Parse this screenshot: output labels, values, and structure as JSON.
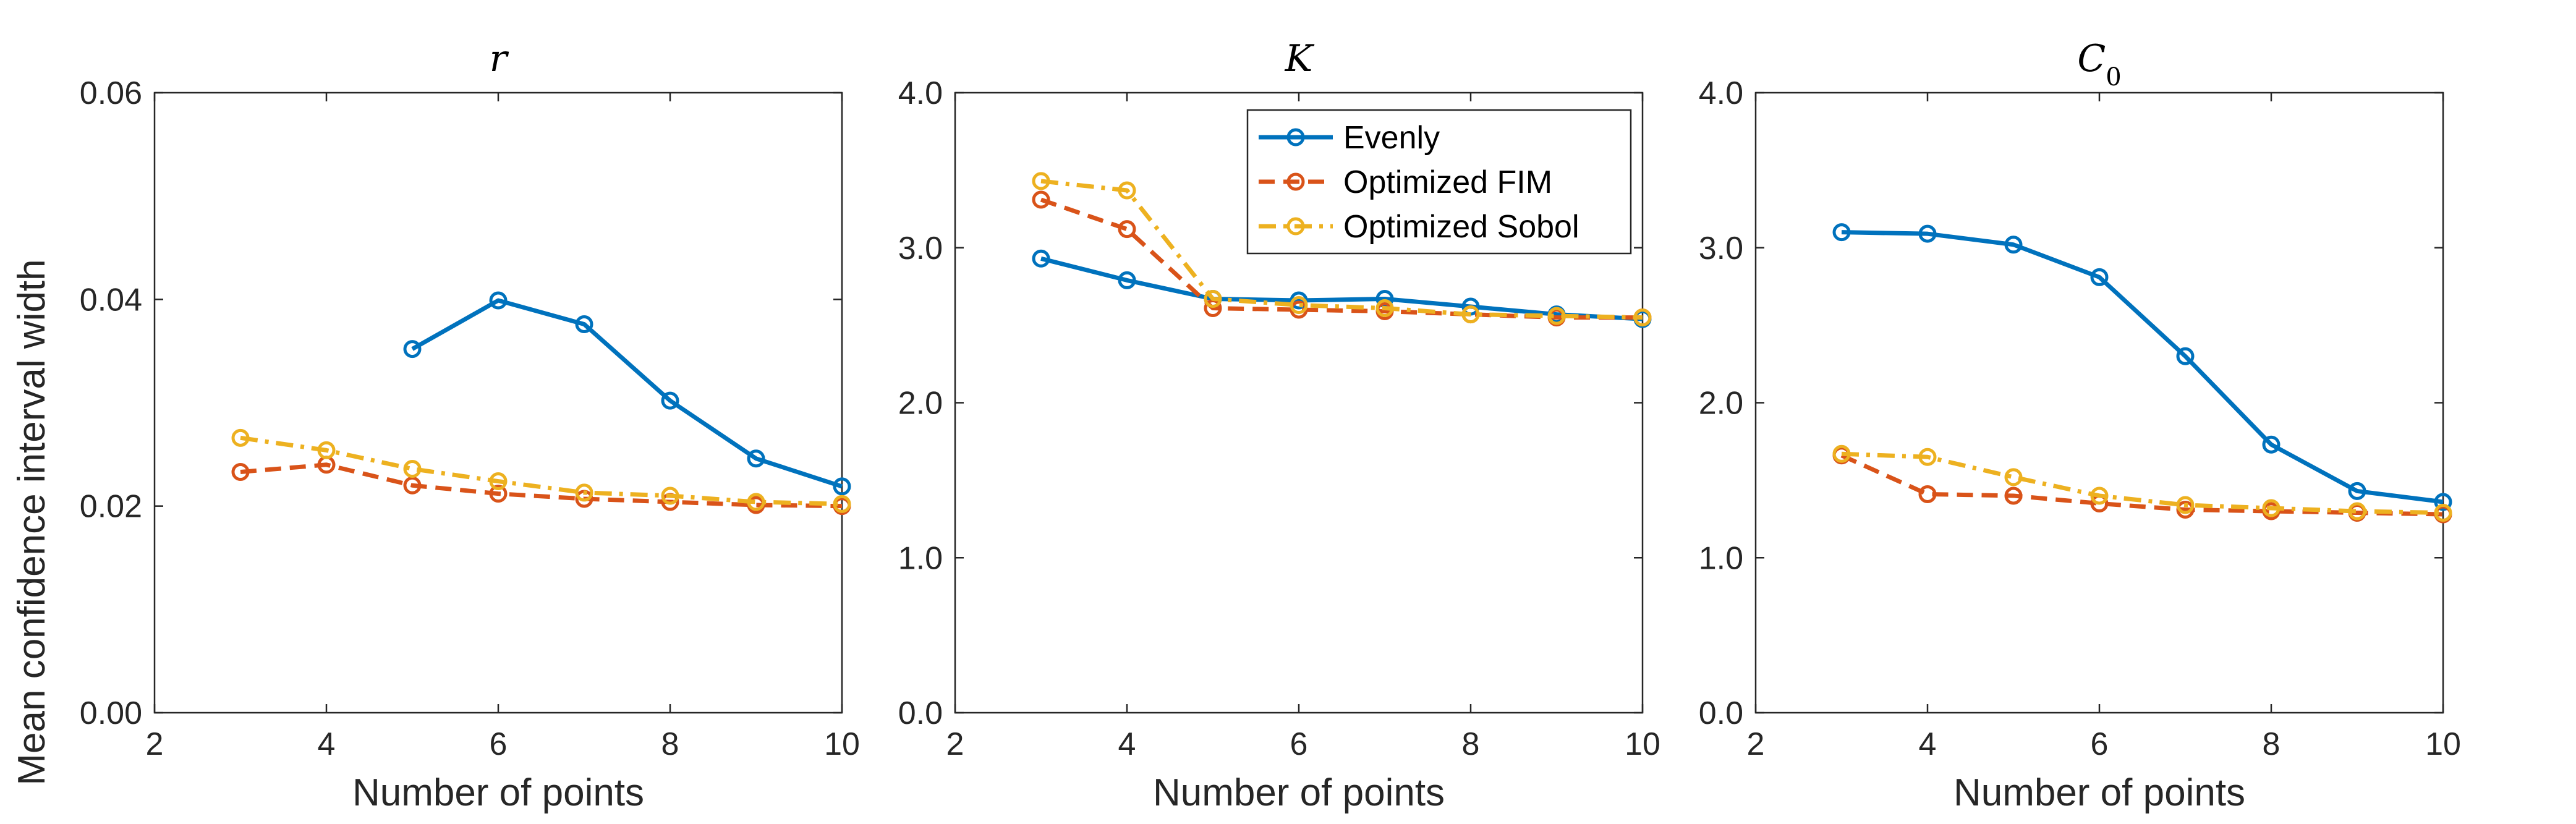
{
  "figure": {
    "ylabel": "Mean confidence interval width",
    "colors": {
      "evenly": "#0072BD",
      "optimized_fim": "#D95319",
      "optimized_sobol": "#EDB120",
      "axis": "#262626",
      "background": "#ffffff"
    },
    "legend": {
      "placement": "top-right of middle panel",
      "entries": [
        "Evenly",
        "Optimized FIM",
        "Optimized Sobol"
      ]
    }
  },
  "chart_data": [
    {
      "type": "line",
      "title": "r",
      "xlabel": "Number of points",
      "ylabel": "Mean confidence interval width",
      "xlim": [
        2,
        10
      ],
      "ylim": [
        0,
        0.06
      ],
      "xticks": [
        "2",
        "4",
        "6",
        "8",
        "10"
      ],
      "yticks": [
        "0.00",
        "0.02",
        "0.04",
        "0.06"
      ],
      "series": [
        {
          "name": "Evenly",
          "style": "solid",
          "x": [
            5,
            6,
            7,
            8,
            9,
            10
          ],
          "values": [
            0.0352,
            0.0399,
            0.0376,
            0.0302,
            0.0246,
            0.0219
          ]
        },
        {
          "name": "Optimized FIM",
          "style": "dashed",
          "x": [
            3,
            4,
            5,
            6,
            7,
            8,
            9,
            10
          ],
          "values": [
            0.0233,
            0.024,
            0.022,
            0.0212,
            0.0207,
            0.0204,
            0.0201,
            0.02
          ]
        },
        {
          "name": "Optimized Sobol",
          "style": "dashdot",
          "x": [
            3,
            4,
            5,
            6,
            7,
            8,
            9,
            10
          ],
          "values": [
            0.0266,
            0.0254,
            0.0236,
            0.0224,
            0.0213,
            0.021,
            0.0204,
            0.0202
          ]
        }
      ]
    },
    {
      "type": "line",
      "title": "K",
      "xlabel": "Number of points",
      "xlim": [
        2,
        10
      ],
      "ylim": [
        0,
        4
      ],
      "xticks": [
        "2",
        "4",
        "6",
        "8",
        "10"
      ],
      "yticks": [
        "0.0",
        "1.0",
        "2.0",
        "3.0",
        "4.0"
      ],
      "series": [
        {
          "name": "Evenly",
          "style": "solid",
          "x": [
            3,
            4,
            5,
            6,
            7,
            8,
            9,
            10
          ],
          "values": [
            2.93,
            2.79,
            2.67,
            2.66,
            2.67,
            2.62,
            2.57,
            2.54
          ]
        },
        {
          "name": "Optimized FIM",
          "style": "dashed",
          "x": [
            3,
            4,
            5,
            6,
            7,
            8,
            9,
            10
          ],
          "values": [
            3.31,
            3.12,
            2.61,
            2.6,
            2.59,
            2.57,
            2.55,
            2.55
          ]
        },
        {
          "name": "Optimized Sobol",
          "style": "dashdot",
          "x": [
            3,
            4,
            5,
            6,
            7,
            8,
            9,
            10
          ],
          "values": [
            3.43,
            3.37,
            2.67,
            2.63,
            2.61,
            2.57,
            2.56,
            2.55
          ]
        }
      ]
    },
    {
      "type": "line",
      "title": "C0",
      "xlabel": "Number of points",
      "xlim": [
        2,
        10
      ],
      "ylim": [
        0,
        4
      ],
      "xticks": [
        "2",
        "4",
        "6",
        "8",
        "10"
      ],
      "yticks": [
        "0.0",
        "1.0",
        "2.0",
        "3.0",
        "4.0"
      ],
      "series": [
        {
          "name": "Evenly",
          "style": "solid",
          "x": [
            3,
            4,
            5,
            6,
            7,
            8,
            9,
            10
          ],
          "values": [
            3.1,
            3.09,
            3.02,
            2.81,
            2.3,
            1.73,
            1.43,
            1.36
          ]
        },
        {
          "name": "Optimized FIM",
          "style": "dashed",
          "x": [
            3,
            4,
            5,
            6,
            7,
            8,
            9,
            10
          ],
          "values": [
            1.66,
            1.41,
            1.4,
            1.35,
            1.31,
            1.3,
            1.29,
            1.28
          ]
        },
        {
          "name": "Optimized Sobol",
          "style": "dashdot",
          "x": [
            3,
            4,
            5,
            6,
            7,
            8,
            9,
            10
          ],
          "values": [
            1.67,
            1.65,
            1.52,
            1.4,
            1.34,
            1.32,
            1.3,
            1.29
          ]
        }
      ]
    }
  ]
}
